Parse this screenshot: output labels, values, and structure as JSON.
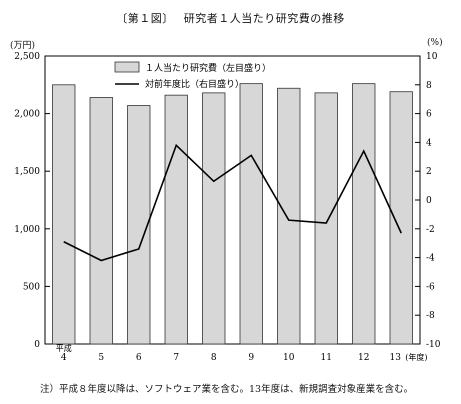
{
  "figure": {
    "number_label": "〔第１図〕",
    "title": "研究者１人当たり研究費の推移"
  },
  "units": {
    "left": "(万円)",
    "right": "(%)"
  },
  "note": "注）平成８年度以降は、ソフトウェア業を含む。13年度は、新規調査対象産業を含む。",
  "chart_data": {
    "type": "bar",
    "categories": [
      "4",
      "5",
      "6",
      "7",
      "8",
      "9",
      "10",
      "11",
      "12",
      "13"
    ],
    "category_prefix": "平成",
    "category_suffix": "(年度)",
    "series": [
      {
        "name": "１人当たり研究費（左目盛り）",
        "type": "bar",
        "axis": "left",
        "values": [
          2250,
          2140,
          2070,
          2160,
          2180,
          2260,
          2220,
          2180,
          2260,
          2190
        ]
      },
      {
        "name": "対前年度比（右目盛り）",
        "type": "line",
        "axis": "right",
        "values": [
          -2.9,
          -4.2,
          -3.4,
          3.8,
          1.3,
          3.1,
          -1.4,
          -1.6,
          3.4,
          -2.3
        ]
      }
    ],
    "y_left": {
      "range": [
        0,
        2500
      ],
      "ticks": [
        "0",
        "500",
        "1,000",
        "1,500",
        "2,000",
        "2,500"
      ]
    },
    "y_right": {
      "range": [
        -10,
        10
      ],
      "ticks": [
        "-10",
        "-8",
        "-6",
        "-4",
        "-2",
        "0",
        "2",
        "4",
        "6",
        "8",
        "10"
      ]
    },
    "legend_position": "top-center",
    "grid": false,
    "colors": {
      "bar_fill": "#d7d7d7",
      "bar_stroke": "#333333",
      "line": "#000000"
    }
  }
}
